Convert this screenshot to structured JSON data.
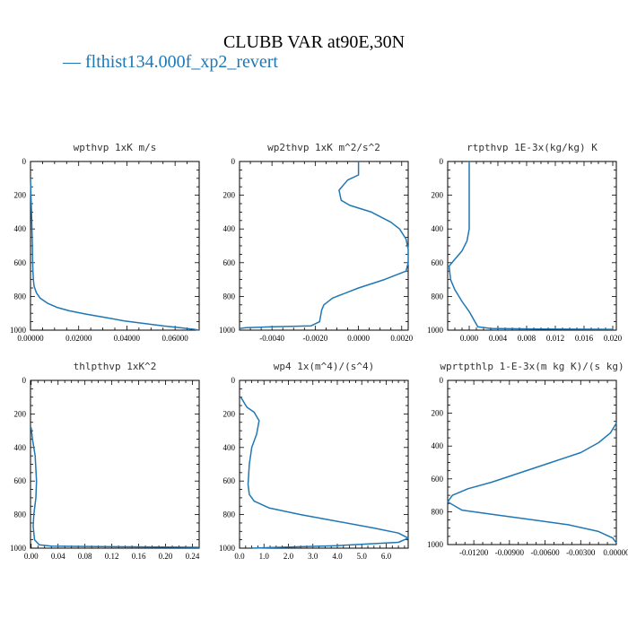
{
  "title": "CLUBB VAR at90E,30N",
  "legend": {
    "dash": "—",
    "label": "flthist134.000f_xp2_revert"
  },
  "colors": {
    "line": "#1f77b4"
  },
  "chart_data": [
    {
      "type": "line",
      "title": "wpthvp   1xK m/s",
      "xticks": [
        "0.00000",
        "0.02000",
        "0.04000",
        "0.06000"
      ],
      "xtick_values": [
        0,
        0.02,
        0.04,
        0.06
      ],
      "xlim": [
        0,
        0.07
      ],
      "ylim": [
        1000,
        0
      ],
      "yticks": [
        "0",
        "200",
        "400",
        "600",
        "800",
        "1000"
      ],
      "x": [
        0.0,
        0.0002,
        0.0004,
        0.0006,
        0.0008,
        0.0009,
        0.001,
        0.0012,
        0.0015,
        0.0025,
        0.004,
        0.007,
        0.011,
        0.016,
        0.023,
        0.031,
        0.039,
        0.047,
        0.055,
        0.062,
        0.068,
        0.07
      ],
      "y": [
        100,
        200,
        300,
        400,
        500,
        600,
        650,
        700,
        740,
        780,
        810,
        840,
        865,
        885,
        905,
        925,
        945,
        960,
        975,
        985,
        995,
        1000
      ]
    },
    {
      "type": "line",
      "title": "wp2thvp   1xK m^2/s^2",
      "xticks": [
        "-0.0040",
        "-0.0020",
        "0.0000",
        "0.0020"
      ],
      "xtick_values": [
        -0.004,
        -0.002,
        0,
        0.002
      ],
      "xlim": [
        -0.0055,
        0.0023
      ],
      "ylim": [
        1000,
        0
      ],
      "yticks": [
        "0",
        "200",
        "400",
        "600",
        "800",
        "1000"
      ],
      "x": [
        0.0,
        0.0,
        -0.0005,
        -0.0009,
        -0.0008,
        -0.0004,
        0.0006,
        0.0015,
        0.0019,
        0.0022,
        0.0023,
        0.0023,
        0.0022,
        0.0012,
        0.0,
        -0.0012,
        -0.0016,
        -0.0017,
        -0.0018,
        -0.0022,
        -0.004,
        -0.0052,
        -0.0055
      ],
      "y": [
        0,
        80,
        110,
        170,
        230,
        260,
        300,
        360,
        400,
        460,
        520,
        600,
        650,
        700,
        750,
        810,
        850,
        880,
        950,
        975,
        980,
        985,
        990
      ]
    },
    {
      "type": "line",
      "title": "rtpthvp   1E-3x(kg/kg) K",
      "xticks": [
        "0.000",
        "0.004",
        "0.008",
        "0.012",
        "0.016",
        "0.020"
      ],
      "xtick_values": [
        0,
        0.004,
        0.008,
        0.012,
        0.016,
        0.02
      ],
      "xlim": [
        -0.003,
        0.0205
      ],
      "ylim": [
        1000,
        0
      ],
      "yticks": [
        "0",
        "200",
        "400",
        "600",
        "800",
        "1000"
      ],
      "x": [
        0.0,
        0.0,
        0.0,
        -0.0003,
        -0.001,
        -0.002,
        -0.0028,
        -0.0026,
        -0.002,
        -0.001,
        0.0,
        0.0008,
        0.0012,
        0.003,
        0.01,
        0.02
      ],
      "y": [
        0,
        200,
        400,
        470,
        530,
        580,
        620,
        700,
        760,
        830,
        890,
        950,
        980,
        990,
        993,
        995
      ]
    },
    {
      "type": "line",
      "title": "thlpthvp   1xK^2",
      "xticks": [
        "0.00",
        "0.04",
        "0.08",
        "0.12",
        "0.16",
        "0.20",
        "0.24"
      ],
      "xtick_values": [
        0,
        0.04,
        0.08,
        0.12,
        0.16,
        0.2,
        0.24
      ],
      "xlim": [
        -0.001,
        0.25
      ],
      "ylim": [
        1000,
        0
      ],
      "yticks": [
        "0",
        "200",
        "400",
        "600",
        "800",
        "1000"
      ],
      "x": [
        0.0,
        0.002,
        0.006,
        0.008,
        0.007,
        0.004,
        0.003,
        0.005,
        0.012,
        0.03,
        0.08,
        0.15,
        0.22,
        0.25
      ],
      "y": [
        280,
        350,
        450,
        600,
        700,
        800,
        870,
        950,
        980,
        988,
        990,
        992,
        994,
        995
      ]
    },
    {
      "type": "line",
      "title": "wp4   1x(m^4)/(s^4)",
      "xticks": [
        "0.0",
        "1.0",
        "2.0",
        "3.0",
        "4.0",
        "5.0",
        "6.0"
      ],
      "xtick_values": [
        0,
        1,
        2,
        3,
        4,
        5,
        6
      ],
      "xlim": [
        0,
        6.9
      ],
      "ylim": [
        1000,
        0
      ],
      "yticks": [
        "0",
        "200",
        "400",
        "600",
        "800",
        "1000"
      ],
      "x": [
        0.05,
        0.3,
        0.6,
        0.8,
        0.7,
        0.5,
        0.4,
        0.35,
        0.4,
        0.6,
        1.2,
        2.5,
        4.0,
        5.5,
        6.5,
        6.9,
        6.5,
        4.0,
        1.5,
        0.5
      ],
      "y": [
        100,
        160,
        190,
        240,
        320,
        400,
        500,
        620,
        680,
        720,
        760,
        800,
        840,
        880,
        910,
        940,
        965,
        985,
        995,
        1000
      ]
    },
    {
      "type": "line",
      "title": "wprtpthlp   1-E-3x(m kg K)/(s kg)",
      "xticks": [
        "-0.01200",
        "-0.00900",
        "-0.00600",
        "-0.00300",
        "0.00000"
      ],
      "xtick_values": [
        -0.012,
        -0.009,
        -0.006,
        -0.003,
        0.0
      ],
      "xlim": [
        -0.0142,
        0.0
      ],
      "ylim": [
        1000,
        0
      ],
      "yticks": [
        "0",
        "200",
        "400",
        "600",
        "800",
        "1000"
      ],
      "x": [
        0.0,
        -0.0005,
        -0.0015,
        -0.003,
        -0.0055,
        -0.008,
        -0.0105,
        -0.0125,
        -0.0138,
        -0.0142,
        -0.013,
        -0.01,
        -0.007,
        -0.004,
        -0.0015,
        -0.0003,
        0.0
      ],
      "y": [
        260,
        320,
        380,
        440,
        500,
        560,
        620,
        660,
        700,
        740,
        790,
        820,
        850,
        880,
        920,
        960,
        990
      ]
    }
  ]
}
